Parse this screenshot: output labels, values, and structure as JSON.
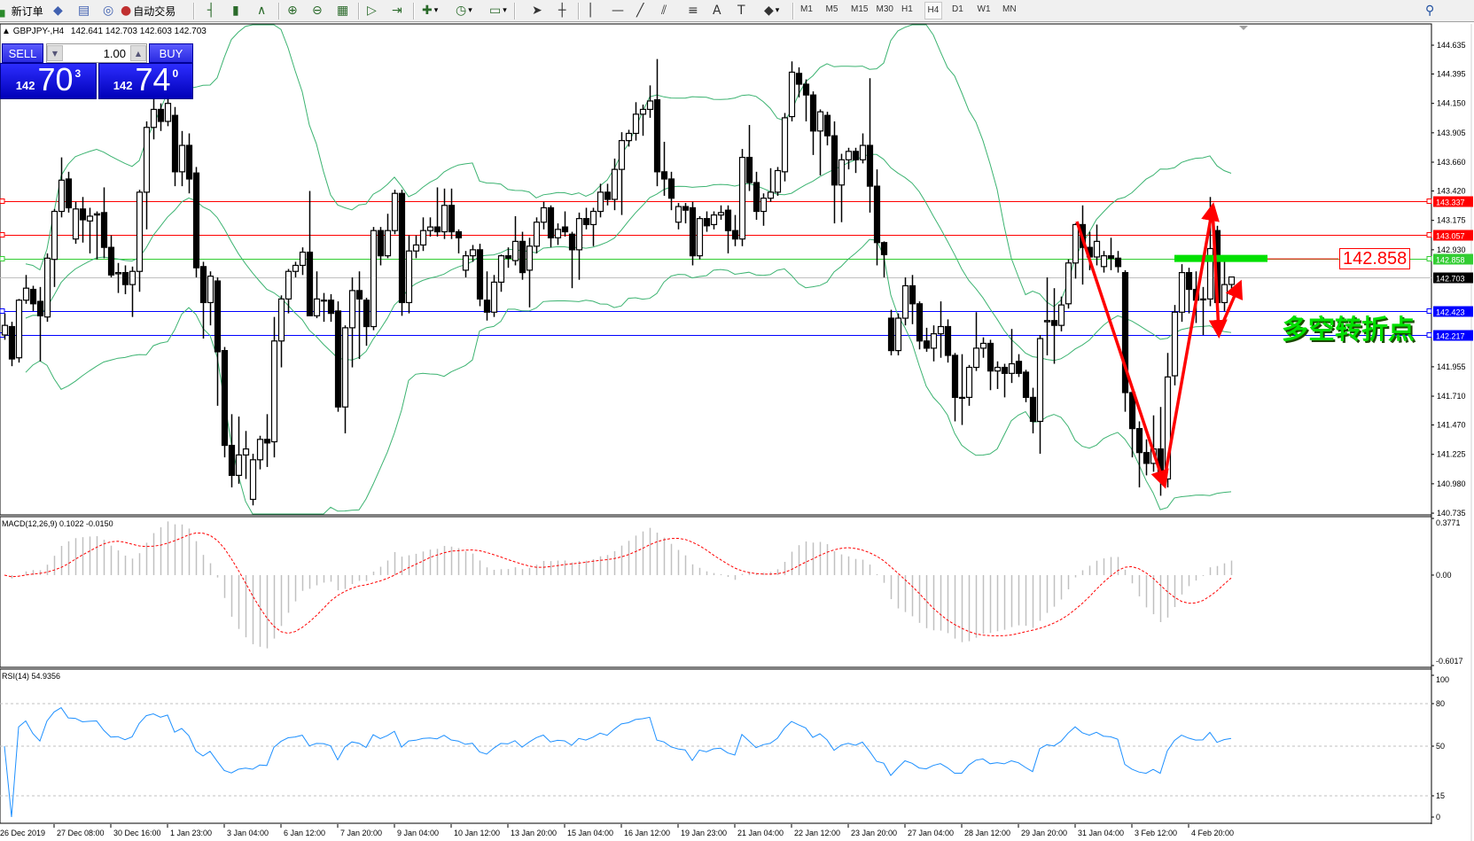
{
  "toolbar": {
    "new_order": {
      "label": "新订单",
      "icon": "new-order-icon"
    },
    "auto_trading": {
      "label": "自动交易",
      "icon": "auto-trading-icon"
    },
    "icons": [
      "market-watch-icon",
      "navigator-icon",
      "signals-icon",
      "bar-chart-icon",
      "candlestick-icon",
      "line-chart-icon",
      "zoom-in-icon",
      "zoom-out-icon",
      "tile-windows-icon",
      "auto-scroll-icon",
      "chart-shift-icon",
      "indicators-icon",
      "periods-icon",
      "templates-icon",
      "cursor-icon",
      "crosshair-icon",
      "vertical-line-icon",
      "horizontal-line-icon",
      "trendline-icon",
      "equidistant-channel-icon",
      "fibonacci-icon",
      "text-icon",
      "text-label-icon",
      "shapes-icon"
    ],
    "timeframes": [
      "M1",
      "M5",
      "M15",
      "M30",
      "H1",
      "H4",
      "D1",
      "W1",
      "MN"
    ],
    "active_timeframe": "H4",
    "search_icon": "search-icon"
  },
  "chart_header": {
    "symbol": "GBPJPY-,H4",
    "ohlc": "142.641 142.703 142.603 142.703"
  },
  "one_click": {
    "sell_label": "SELL",
    "buy_label": "BUY",
    "lot": "1.00",
    "sell_price": {
      "big_figure": "142",
      "pips": "70",
      "fraction": "3"
    },
    "buy_price": {
      "big_figure": "142",
      "pips": "74",
      "fraction": "0"
    }
  },
  "annotations": {
    "price_box": "142.858",
    "text": "多空转折点"
  },
  "colors": {
    "bull": "#ffffff",
    "bear": "#000000",
    "bands": "#3cb371",
    "macd_hist": "#c0c0c0",
    "macd_signal": "#ff0000",
    "rsi": "#1e90ff",
    "resistance": "#ff0000",
    "pivot": "#32cd32",
    "support": "#0000ff",
    "bid": "#c0c0c0",
    "arrows": "#ff0000"
  },
  "chart_data": [
    {
      "type": "candlestick",
      "title": "GBPJPY-,H4",
      "ylim": [
        140.735,
        144.635
      ],
      "ytick_labels": [
        "144.635",
        "144.395",
        "144.150",
        "143.905",
        "143.660",
        "143.420",
        "143.175",
        "142.930",
        "141.955",
        "141.710",
        "141.470",
        "141.225",
        "140.980",
        "140.735"
      ],
      "xtick_labels": [
        "26 Dec 2019",
        "27 Dec 08:00",
        "30 Dec 16:00",
        "1 Jan 23:00",
        "3 Jan 04:00",
        "6 Jan 12:00",
        "7 Jan 20:00",
        "9 Jan 04:00",
        "10 Jan 12:00",
        "13 Jan 20:00",
        "15 Jan 04:00",
        "16 Jan 12:00",
        "19 Jan 23:00",
        "21 Jan 04:00",
        "22 Jan 12:00",
        "23 Jan 20:00",
        "27 Jan 04:00",
        "28 Jan 12:00",
        "29 Jan 20:00",
        "31 Jan 04:00",
        "3 Feb 12:00",
        "4 Feb 20:00"
      ],
      "overlay": "Bollinger Bands",
      "horizontal_lines": [
        {
          "price": "143.337",
          "role": "resistance"
        },
        {
          "price": "143.057",
          "role": "resistance"
        },
        {
          "price": "142.858",
          "role": "pivot"
        },
        {
          "price": "142.703",
          "role": "bid"
        },
        {
          "price": "142.423",
          "role": "support"
        },
        {
          "price": "142.217",
          "role": "support"
        }
      ],
      "candles_ohlc": [
        [
          142.22,
          142.4,
          142.18,
          142.3
        ],
        [
          142.29,
          142.33,
          141.96,
          142.02
        ],
        [
          142.03,
          142.52,
          141.99,
          142.51
        ],
        [
          142.51,
          142.72,
          142.48,
          142.61
        ],
        [
          142.6,
          142.63,
          142.42,
          142.48
        ],
        [
          142.5,
          142.62,
          142.0,
          142.38
        ],
        [
          142.37,
          142.9,
          142.33,
          142.86
        ],
        [
          142.85,
          143.27,
          142.62,
          143.25
        ],
        [
          143.25,
          143.7,
          143.2,
          143.51
        ],
        [
          143.52,
          143.58,
          143.24,
          143.28
        ],
        [
          143.02,
          143.33,
          142.98,
          143.27
        ],
        [
          143.27,
          143.37,
          142.99,
          143.18
        ],
        [
          143.17,
          143.28,
          142.9,
          143.21
        ],
        [
          143.22,
          143.25,
          142.85,
          143.23
        ],
        [
          143.24,
          143.45,
          142.86,
          142.95
        ],
        [
          142.95,
          143.05,
          142.7,
          142.72
        ],
        [
          142.73,
          142.82,
          142.57,
          142.74
        ],
        [
          142.74,
          142.8,
          142.56,
          142.64
        ],
        [
          142.64,
          142.79,
          142.37,
          142.75
        ],
        [
          142.75,
          143.43,
          142.58,
          143.41
        ],
        [
          143.41,
          144.0,
          143.1,
          143.95
        ],
        [
          143.95,
          144.2,
          143.85,
          144.1
        ],
        [
          144.1,
          144.15,
          143.92,
          144.0
        ],
        [
          144.0,
          144.22,
          143.96,
          144.15
        ],
        [
          144.05,
          144.12,
          143.46,
          143.58
        ],
        [
          143.58,
          143.92,
          143.46,
          143.8
        ],
        [
          143.8,
          143.9,
          143.4,
          143.52
        ],
        [
          143.57,
          143.62,
          142.7,
          142.78
        ],
        [
          142.79,
          142.83,
          142.19,
          142.49
        ],
        [
          142.49,
          142.75,
          142.3,
          142.71
        ],
        [
          142.67,
          142.7,
          141.63,
          142.08
        ],
        [
          142.09,
          142.12,
          141.2,
          141.3
        ],
        [
          141.3,
          141.56,
          140.95,
          141.05
        ],
        [
          141.05,
          141.54,
          140.98,
          141.22
        ],
        [
          141.22,
          141.42,
          141.02,
          141.27
        ],
        [
          140.85,
          141.23,
          140.8,
          141.18
        ],
        [
          141.18,
          141.38,
          141.1,
          141.35
        ],
        [
          141.35,
          141.56,
          141.12,
          141.32
        ],
        [
          141.33,
          142.37,
          141.2,
          142.17
        ],
        [
          142.17,
          142.55,
          141.95,
          142.52
        ],
        [
          142.52,
          142.77,
          142.4,
          142.75
        ],
        [
          142.75,
          142.83,
          142.7,
          142.8
        ],
        [
          142.8,
          142.95,
          142.72,
          142.91
        ],
        [
          142.91,
          143.42,
          142.6,
          142.38
        ],
        [
          142.38,
          142.75,
          142.36,
          142.52
        ],
        [
          142.51,
          142.57,
          142.33,
          142.51
        ],
        [
          142.51,
          142.56,
          142.33,
          142.4
        ],
        [
          142.42,
          142.5,
          141.58,
          141.62
        ],
        [
          141.62,
          142.3,
          141.4,
          142.28
        ],
        [
          142.28,
          142.7,
          141.95,
          142.59
        ],
        [
          142.59,
          142.75,
          142.02,
          142.52
        ],
        [
          142.51,
          142.53,
          142.13,
          142.29
        ],
        [
          142.29,
          143.12,
          142.26,
          143.09
        ],
        [
          143.09,
          143.12,
          142.8,
          142.88
        ],
        [
          142.88,
          143.23,
          142.86,
          143.09
        ],
        [
          143.09,
          143.43,
          143.06,
          143.4
        ],
        [
          143.4,
          143.43,
          142.38,
          142.49
        ],
        [
          142.49,
          143.05,
          142.4,
          142.92
        ],
        [
          142.92,
          143.05,
          142.86,
          142.97
        ],
        [
          142.97,
          143.2,
          142.92,
          143.09
        ],
        [
          143.09,
          143.2,
          143.04,
          143.12
        ],
        [
          143.12,
          143.45,
          143.04,
          143.08
        ],
        [
          143.08,
          143.44,
          143.02,
          143.3
        ],
        [
          143.3,
          143.44,
          143.02,
          143.08
        ],
        [
          143.08,
          143.1,
          142.9,
          143.03
        ],
        [
          142.76,
          142.92,
          142.7,
          142.88
        ],
        [
          142.88,
          142.97,
          142.83,
          142.93
        ],
        [
          142.93,
          142.98,
          142.46,
          142.52
        ],
        [
          142.51,
          142.75,
          142.34,
          142.41
        ],
        [
          142.41,
          142.72,
          142.37,
          142.66
        ],
        [
          142.66,
          142.89,
          142.58,
          142.88
        ],
        [
          142.88,
          142.95,
          142.78,
          142.86
        ],
        [
          142.84,
          143.21,
          142.8,
          143.0
        ],
        [
          143.0,
          143.08,
          142.68,
          142.74
        ],
        [
          142.76,
          143.03,
          142.45,
          142.96
        ],
        [
          142.96,
          143.2,
          142.9,
          143.16
        ],
        [
          143.16,
          143.33,
          143.1,
          143.28
        ],
        [
          143.28,
          143.3,
          142.95,
          143.03
        ],
        [
          143.03,
          143.15,
          142.97,
          143.1
        ],
        [
          143.12,
          143.25,
          143.04,
          143.08
        ],
        [
          143.06,
          143.08,
          142.61,
          142.93
        ],
        [
          142.93,
          143.24,
          142.68,
          143.19
        ],
        [
          143.19,
          143.28,
          143.1,
          143.14
        ],
        [
          143.14,
          143.28,
          142.96,
          143.25
        ],
        [
          143.25,
          143.48,
          143.2,
          143.41
        ],
        [
          143.41,
          143.48,
          143.3,
          143.35
        ],
        [
          143.35,
          143.69,
          143.26,
          143.6
        ],
        [
          143.6,
          143.91,
          143.22,
          143.84
        ],
        [
          143.84,
          143.93,
          143.79,
          143.9
        ],
        [
          143.9,
          144.16,
          143.84,
          144.06
        ],
        [
          144.06,
          144.14,
          143.88,
          144.1
        ],
        [
          144.1,
          144.3,
          144.03,
          144.17
        ],
        [
          144.18,
          144.52,
          143.46,
          143.58
        ],
        [
          143.58,
          143.83,
          143.38,
          143.52
        ],
        [
          143.52,
          143.58,
          143.26,
          143.36
        ],
        [
          143.16,
          143.32,
          143.1,
          143.29
        ],
        [
          143.29,
          143.32,
          143.15,
          143.26
        ],
        [
          143.28,
          143.33,
          142.8,
          142.88
        ],
        [
          142.88,
          143.21,
          142.85,
          143.19
        ],
        [
          143.19,
          143.25,
          143.08,
          143.13
        ],
        [
          143.14,
          143.25,
          143.1,
          143.22
        ],
        [
          143.22,
          143.3,
          143.18,
          143.24
        ],
        [
          143.26,
          143.3,
          142.9,
          143.09
        ],
        [
          143.09,
          143.22,
          142.96,
          143.02
        ],
        [
          143.02,
          143.77,
          142.96,
          143.7
        ],
        [
          143.7,
          143.97,
          143.42,
          143.49
        ],
        [
          143.49,
          143.58,
          143.18,
          143.25
        ],
        [
          143.25,
          143.4,
          143.13,
          143.36
        ],
        [
          143.36,
          143.61,
          143.33,
          143.41
        ],
        [
          143.41,
          143.62,
          143.38,
          143.59
        ],
        [
          143.58,
          144.07,
          143.5,
          144.03
        ],
        [
          144.04,
          144.5,
          144.0,
          144.41
        ],
        [
          144.4,
          144.45,
          144.2,
          144.31
        ],
        [
          144.31,
          144.35,
          144.0,
          144.22
        ],
        [
          144.22,
          144.25,
          143.72,
          143.92
        ],
        [
          143.92,
          144.1,
          143.55,
          144.08
        ],
        [
          144.05,
          144.08,
          143.8,
          143.88
        ],
        [
          143.88,
          144.0,
          143.15,
          143.47
        ],
        [
          143.47,
          143.73,
          143.16,
          143.68
        ],
        [
          143.68,
          143.78,
          143.6,
          143.75
        ],
        [
          143.75,
          143.78,
          143.57,
          143.68
        ],
        [
          143.68,
          143.9,
          143.65,
          143.8
        ],
        [
          143.8,
          144.36,
          143.24,
          143.46
        ],
        [
          143.46,
          143.6,
          142.8,
          142.99
        ],
        [
          142.99,
          143.0,
          142.7,
          142.89
        ],
        [
          142.36,
          142.43,
          142.05,
          142.09
        ],
        [
          142.09,
          142.4,
          142.05,
          142.36
        ],
        [
          142.36,
          142.7,
          142.3,
          142.63
        ],
        [
          142.63,
          142.72,
          142.31,
          142.48
        ],
        [
          142.48,
          142.5,
          142.1,
          142.17
        ],
        [
          142.17,
          142.28,
          142.08,
          142.11
        ],
        [
          142.11,
          142.3,
          142.0,
          142.23
        ],
        [
          142.23,
          142.5,
          142.03,
          142.29
        ],
        [
          142.29,
          142.35,
          141.99,
          142.05
        ],
        [
          142.05,
          142.07,
          141.5,
          141.7
        ],
        [
          141.7,
          142.06,
          141.47,
          141.7
        ],
        [
          141.7,
          141.97,
          141.63,
          141.95
        ],
        [
          141.95,
          142.41,
          141.92,
          142.11
        ],
        [
          142.11,
          142.2,
          142.03,
          142.15
        ],
        [
          142.15,
          142.18,
          141.76,
          141.92
        ],
        [
          141.92,
          142.0,
          141.77,
          141.95
        ],
        [
          141.95,
          141.98,
          141.7,
          141.9
        ],
        [
          141.9,
          142.27,
          141.82,
          141.98
        ],
        [
          142.0,
          142.06,
          141.87,
          141.9
        ],
        [
          141.91,
          141.93,
          141.66,
          141.7
        ],
        [
          141.7,
          141.78,
          141.4,
          141.5
        ],
        [
          141.5,
          142.22,
          141.23,
          142.19
        ],
        [
          142.33,
          142.7,
          142.05,
          142.34
        ],
        [
          142.34,
          142.61,
          141.98,
          142.3
        ],
        [
          142.3,
          142.54,
          142.25,
          142.47
        ],
        [
          142.48,
          142.85,
          142.44,
          142.82
        ],
        [
          142.82,
          143.15,
          142.69,
          143.14
        ],
        [
          143.14,
          143.3,
          142.64,
          142.95
        ],
        [
          142.95,
          143.08,
          142.76,
          142.87
        ],
        [
          142.87,
          143.14,
          142.8,
          143.0
        ],
        [
          142.79,
          142.92,
          142.74,
          142.88
        ],
        [
          142.88,
          143.03,
          142.76,
          142.86
        ],
        [
          142.86,
          142.92,
          142.74,
          142.79
        ],
        [
          142.74,
          142.76,
          141.58,
          141.74
        ],
        [
          141.74,
          141.76,
          141.2,
          141.44
        ],
        [
          141.44,
          141.5,
          140.95,
          141.24
        ],
        [
          141.24,
          141.35,
          141.05,
          141.15
        ],
        [
          141.15,
          141.55,
          141.08,
          141.27
        ],
        [
          141.27,
          141.62,
          140.88,
          141.02
        ],
        [
          141.02,
          142.07,
          140.95,
          141.87
        ],
        [
          141.88,
          142.47,
          141.8,
          142.41
        ],
        [
          142.41,
          142.81,
          142.33,
          142.74
        ],
        [
          142.74,
          142.78,
          142.4,
          142.6
        ],
        [
          142.6,
          142.75,
          142.32,
          142.51
        ],
        [
          142.52,
          142.62,
          142.22,
          142.52
        ],
        [
          142.52,
          143.37,
          142.46,
          142.94
        ],
        [
          143.09,
          143.13,
          142.23,
          142.49
        ],
        [
          142.49,
          142.88,
          142.42,
          142.64
        ],
        [
          142.641,
          142.703,
          142.603,
          142.703
        ]
      ]
    },
    {
      "type": "bar",
      "title": "MACD(12,26,9) 0.1022 -0.0150",
      "ytick_labels": [
        "0.3771",
        "0.00",
        "-0.6017"
      ],
      "ylim": [
        -0.6017,
        0.3771
      ]
    },
    {
      "type": "line",
      "title": "RSI(14) 54.9356",
      "ytick_labels": [
        "100",
        "80",
        "50",
        "15",
        "0"
      ],
      "ylim": [
        0,
        100
      ],
      "levels": [
        80,
        50,
        15
      ]
    }
  ]
}
